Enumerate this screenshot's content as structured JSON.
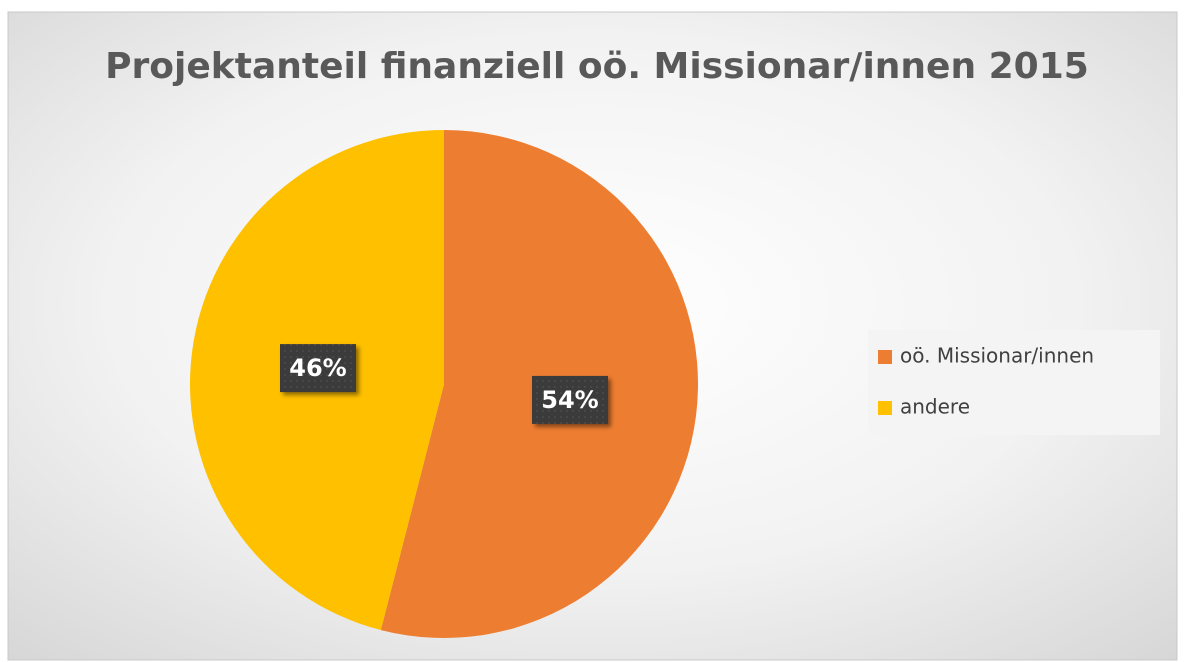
{
  "chart_data": {
    "type": "pie",
    "title": "Projektanteil finanziell oö. Missionar/innen 2015",
    "categories": [
      "oö. Missionar/innen",
      "andere"
    ],
    "values": [
      54,
      46
    ],
    "value_labels": [
      "54%",
      "46%"
    ],
    "colors": [
      "#ED7D31",
      "#FFC000"
    ],
    "legend": "right"
  }
}
